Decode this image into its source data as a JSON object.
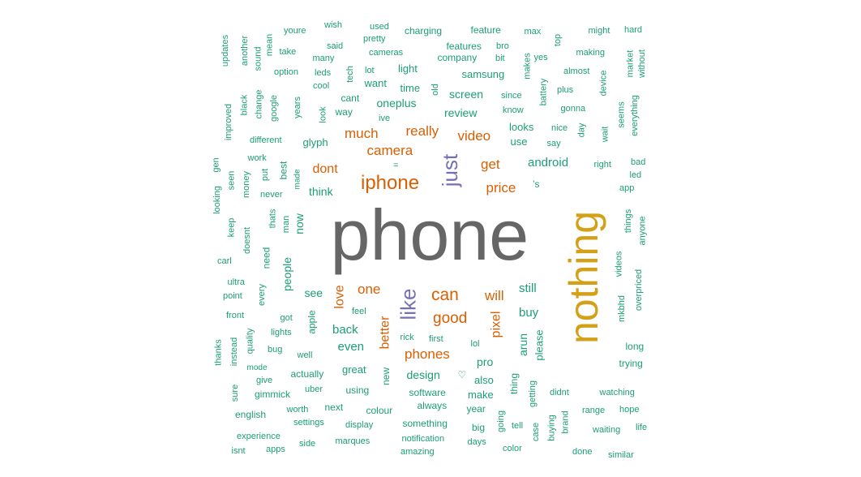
{
  "colors": {
    "grey": "#666666",
    "gold": "#D4A017",
    "purple": "#7570B3",
    "orange": "#D95F02",
    "teal": "#1B9E77"
  },
  "words": [
    {
      "text": "phone",
      "color": "grey"
    },
    {
      "text": "nothing",
      "color": "gold"
    },
    {
      "text": "just",
      "color": "purple"
    },
    {
      "text": "like",
      "color": "purple"
    },
    {
      "text": "iphone",
      "color": "orange"
    },
    {
      "text": "camera",
      "color": "orange"
    },
    {
      "text": "much",
      "color": "orange"
    },
    {
      "text": "really",
      "color": "orange"
    },
    {
      "text": "video",
      "color": "orange"
    },
    {
      "text": "get",
      "color": "orange"
    },
    {
      "text": "price",
      "color": "orange"
    },
    {
      "text": "dont",
      "color": "orange"
    },
    {
      "text": "can",
      "color": "orange"
    },
    {
      "text": "good",
      "color": "orange"
    },
    {
      "text": "will",
      "color": "orange"
    },
    {
      "text": "one",
      "color": "orange"
    },
    {
      "text": "love",
      "color": "orange"
    },
    {
      "text": "better",
      "color": "orange"
    },
    {
      "text": "pixel",
      "color": "orange"
    },
    {
      "text": "phones",
      "color": "orange"
    },
    {
      "text": "android",
      "color": "teal"
    },
    {
      "text": "oneplus",
      "color": "teal"
    },
    {
      "text": "screen",
      "color": "teal"
    },
    {
      "text": "review",
      "color": "teal"
    },
    {
      "text": "samsung",
      "color": "teal"
    },
    {
      "text": "looks",
      "color": "teal"
    },
    {
      "text": "use",
      "color": "teal"
    },
    {
      "text": "still",
      "color": "teal"
    },
    {
      "text": "buy",
      "color": "teal"
    },
    {
      "text": "back",
      "color": "teal"
    },
    {
      "text": "even",
      "color": "teal"
    },
    {
      "text": "see",
      "color": "teal"
    },
    {
      "text": "think",
      "color": "teal"
    },
    {
      "text": "people",
      "color": "teal"
    },
    {
      "text": "now",
      "color": "teal"
    },
    {
      "text": "design",
      "color": "teal"
    },
    {
      "text": "arun",
      "color": "teal"
    },
    {
      "text": "glyph",
      "color": "teal"
    },
    {
      "text": "time",
      "color": "teal"
    },
    {
      "text": "light",
      "color": "teal"
    },
    {
      "text": "want",
      "color": "teal"
    },
    {
      "text": "cant",
      "color": "teal"
    },
    {
      "text": "way",
      "color": "teal"
    },
    {
      "text": "company",
      "color": "teal"
    },
    {
      "text": "features",
      "color": "teal"
    },
    {
      "text": "charging",
      "color": "teal"
    },
    {
      "text": "feature",
      "color": "teal"
    },
    {
      "text": "max",
      "color": "teal"
    },
    {
      "text": "might",
      "color": "teal"
    },
    {
      "text": "hard",
      "color": "teal"
    },
    {
      "text": "youre",
      "color": "teal"
    },
    {
      "text": "wish",
      "color": "teal"
    },
    {
      "text": "used",
      "color": "teal"
    },
    {
      "text": "pretty",
      "color": "teal"
    },
    {
      "text": "said",
      "color": "teal"
    },
    {
      "text": "cameras",
      "color": "teal"
    },
    {
      "text": "bro",
      "color": "teal"
    },
    {
      "text": "bit",
      "color": "teal"
    },
    {
      "text": "yes",
      "color": "teal"
    },
    {
      "text": "making",
      "color": "teal"
    },
    {
      "text": "take",
      "color": "teal"
    },
    {
      "text": "many",
      "color": "teal"
    },
    {
      "text": "option",
      "color": "teal"
    },
    {
      "text": "leds",
      "color": "teal"
    },
    {
      "text": "lot",
      "color": "teal"
    },
    {
      "text": "cool",
      "color": "teal"
    },
    {
      "text": "almost",
      "color": "teal"
    },
    {
      "text": "plus",
      "color": "teal"
    },
    {
      "text": "since",
      "color": "teal"
    },
    {
      "text": "know",
      "color": "teal"
    },
    {
      "text": "gonna",
      "color": "teal"
    },
    {
      "text": "nice",
      "color": "teal"
    },
    {
      "text": "say",
      "color": "teal"
    },
    {
      "text": "ive",
      "color": "teal"
    },
    {
      "text": "different",
      "color": "teal"
    },
    {
      "text": "work",
      "color": "teal"
    },
    {
      "text": "put",
      "color": "teal"
    },
    {
      "text": "never",
      "color": "teal"
    },
    {
      "text": "right",
      "color": "teal"
    },
    {
      "text": "bad",
      "color": "teal"
    },
    {
      "text": "led",
      "color": "teal"
    },
    {
      "text": "app",
      "color": "teal"
    },
    {
      "text": "carl",
      "color": "teal"
    },
    {
      "text": "ultra",
      "color": "teal"
    },
    {
      "text": "point",
      "color": "teal"
    },
    {
      "text": "front",
      "color": "teal"
    },
    {
      "text": "got",
      "color": "teal"
    },
    {
      "text": "lights",
      "color": "teal"
    },
    {
      "text": "bug",
      "color": "teal"
    },
    {
      "text": "well",
      "color": "teal"
    },
    {
      "text": "feel",
      "color": "teal"
    },
    {
      "text": "rick",
      "color": "teal"
    },
    {
      "text": "first",
      "color": "teal"
    },
    {
      "text": "lol",
      "color": "teal"
    },
    {
      "text": "pro",
      "color": "teal"
    },
    {
      "text": "great",
      "color": "teal"
    },
    {
      "text": "also",
      "color": "teal"
    },
    {
      "text": "make",
      "color": "teal"
    },
    {
      "text": "using",
      "color": "teal"
    },
    {
      "text": "software",
      "color": "teal"
    },
    {
      "text": "always",
      "color": "teal"
    },
    {
      "text": "actually",
      "color": "teal"
    },
    {
      "text": "uber",
      "color": "teal"
    },
    {
      "text": "mode",
      "color": "teal"
    },
    {
      "text": "give",
      "color": "teal"
    },
    {
      "text": "gimmick",
      "color": "teal"
    },
    {
      "text": "long",
      "color": "teal"
    },
    {
      "text": "trying",
      "color": "teal"
    },
    {
      "text": "didnt",
      "color": "teal"
    },
    {
      "text": "watching",
      "color": "teal"
    },
    {
      "text": "range",
      "color": "teal"
    },
    {
      "text": "hope",
      "color": "teal"
    },
    {
      "text": "waiting",
      "color": "teal"
    },
    {
      "text": "life",
      "color": "teal"
    },
    {
      "text": "year",
      "color": "teal"
    },
    {
      "text": "colour",
      "color": "teal"
    },
    {
      "text": "english",
      "color": "teal"
    },
    {
      "text": "worth",
      "color": "teal"
    },
    {
      "text": "next",
      "color": "teal"
    },
    {
      "text": "settings",
      "color": "teal"
    },
    {
      "text": "display",
      "color": "teal"
    },
    {
      "text": "something",
      "color": "teal"
    },
    {
      "text": "big",
      "color": "teal"
    },
    {
      "text": "tell",
      "color": "teal"
    },
    {
      "text": "experience",
      "color": "teal"
    },
    {
      "text": "side",
      "color": "teal"
    },
    {
      "text": "marques",
      "color": "teal"
    },
    {
      "text": "notification",
      "color": "teal"
    },
    {
      "text": "days",
      "color": "teal"
    },
    {
      "text": "color",
      "color": "teal"
    },
    {
      "text": "done",
      "color": "teal"
    },
    {
      "text": "similar",
      "color": "teal"
    },
    {
      "text": "isnt",
      "color": "teal"
    },
    {
      "text": "apps",
      "color": "teal"
    },
    {
      "text": "amazing",
      "color": "teal"
    },
    {
      "text": "’s",
      "color": "teal"
    },
    {
      "text": "♡",
      "color": "teal"
    },
    {
      "text": "=",
      "color": "teal"
    },
    {
      "text": "updates",
      "color": "teal"
    },
    {
      "text": "another",
      "color": "teal"
    },
    {
      "text": "sound",
      "color": "teal"
    },
    {
      "text": "mean",
      "color": "teal"
    },
    {
      "text": "tech",
      "color": "teal"
    },
    {
      "text": "old",
      "color": "teal"
    },
    {
      "text": "makes",
      "color": "teal"
    },
    {
      "text": "top",
      "color": "teal"
    },
    {
      "text": "battery",
      "color": "teal"
    },
    {
      "text": "device",
      "color": "teal"
    },
    {
      "text": "market",
      "color": "teal"
    },
    {
      "text": "without",
      "color": "teal"
    },
    {
      "text": "improved",
      "color": "teal"
    },
    {
      "text": "black",
      "color": "teal"
    },
    {
      "text": "change",
      "color": "teal"
    },
    {
      "text": "google",
      "color": "teal"
    },
    {
      "text": "years",
      "color": "teal"
    },
    {
      "text": "look",
      "color": "teal"
    },
    {
      "text": "day",
      "color": "teal"
    },
    {
      "text": "wait",
      "color": "teal"
    },
    {
      "text": "seems",
      "color": "teal"
    },
    {
      "text": "everything",
      "color": "teal"
    },
    {
      "text": "gen",
      "color": "teal"
    },
    {
      "text": "seen",
      "color": "teal"
    },
    {
      "text": "money",
      "color": "teal"
    },
    {
      "text": "best",
      "color": "teal"
    },
    {
      "text": "made",
      "color": "teal"
    },
    {
      "text": "looking",
      "color": "teal"
    },
    {
      "text": "keep",
      "color": "teal"
    },
    {
      "text": "doesnt",
      "color": "teal"
    },
    {
      "text": "thats",
      "color": "teal"
    },
    {
      "text": "man",
      "color": "teal"
    },
    {
      "text": "need",
      "color": "teal"
    },
    {
      "text": "things",
      "color": "teal"
    },
    {
      "text": "anyone",
      "color": "teal"
    },
    {
      "text": "videos",
      "color": "teal"
    },
    {
      "text": "overpriced",
      "color": "teal"
    },
    {
      "text": "mkbhd",
      "color": "teal"
    },
    {
      "text": "every",
      "color": "teal"
    },
    {
      "text": "apple",
      "color": "teal"
    },
    {
      "text": "thanks",
      "color": "teal"
    },
    {
      "text": "instead",
      "color": "teal"
    },
    {
      "text": "quality",
      "color": "teal"
    },
    {
      "text": "sure",
      "color": "teal"
    },
    {
      "text": "new",
      "color": "teal"
    },
    {
      "text": "please",
      "color": "teal"
    },
    {
      "text": "thing",
      "color": "teal"
    },
    {
      "text": "getting",
      "color": "teal"
    },
    {
      "text": "going",
      "color": "teal"
    },
    {
      "text": "case",
      "color": "teal"
    },
    {
      "text": "buying",
      "color": "teal"
    },
    {
      "text": "brand",
      "color": "teal"
    }
  ]
}
